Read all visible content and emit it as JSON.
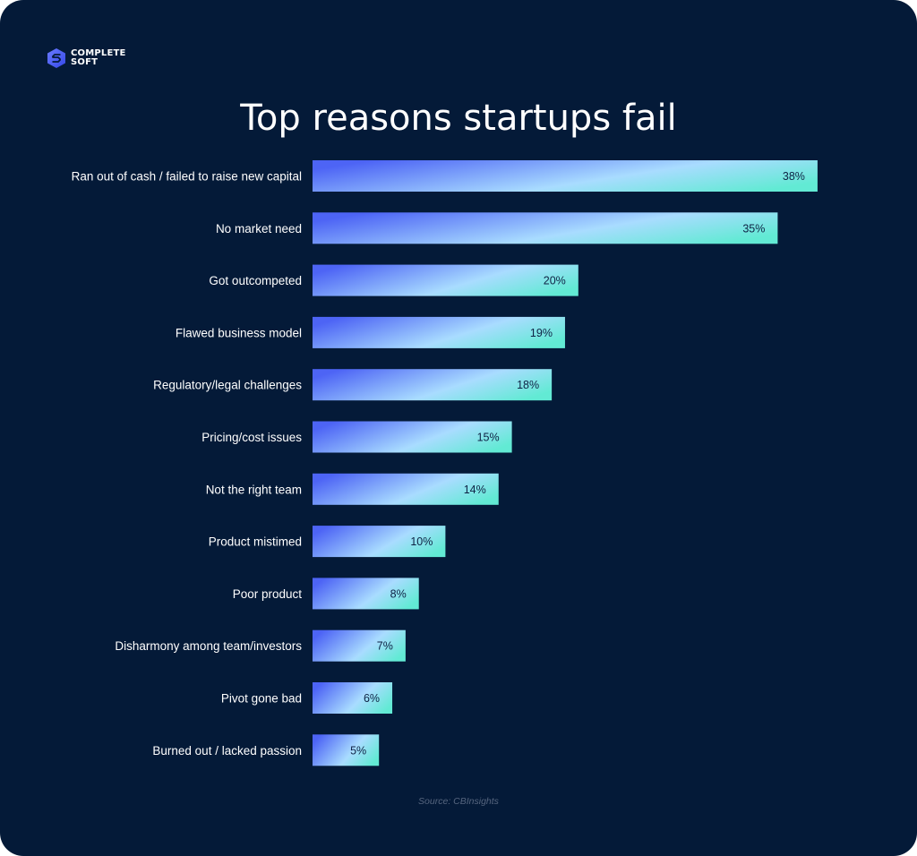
{
  "brand": {
    "line1": "COMPLETE",
    "line2": "SOFT",
    "logo_icon": "hexagon-s-logo-icon"
  },
  "colors": {
    "background": "#041a38",
    "bar_start": "#4d64f5",
    "bar_mid": "#a9dcff",
    "bar_end": "#62ead4",
    "value_text": "#0f2345"
  },
  "chart_data": {
    "type": "bar",
    "orientation": "horizontal",
    "title": "Top reasons startups fail",
    "categories": [
      "Ran out of cash / failed to raise new capital",
      "No market need",
      "Got outcompeted",
      "Flawed business model",
      "Regulatory/legal challenges",
      "Pricing/cost issues",
      "Not the right team",
      "Product mistimed",
      "Poor product",
      "Disharmony among team/investors",
      "Pivot gone bad",
      "Burned out / lacked passion"
    ],
    "values": [
      38,
      35,
      20,
      19,
      18,
      15,
      14,
      10,
      8,
      7,
      6,
      5
    ],
    "value_labels": [
      "38%",
      "35%",
      "20%",
      "19%",
      "18%",
      "15%",
      "14%",
      "10%",
      "8%",
      "7%",
      "6%",
      "5%"
    ],
    "unit": "%",
    "grid": false,
    "legend": "none"
  },
  "source": "Source: CBInsights"
}
